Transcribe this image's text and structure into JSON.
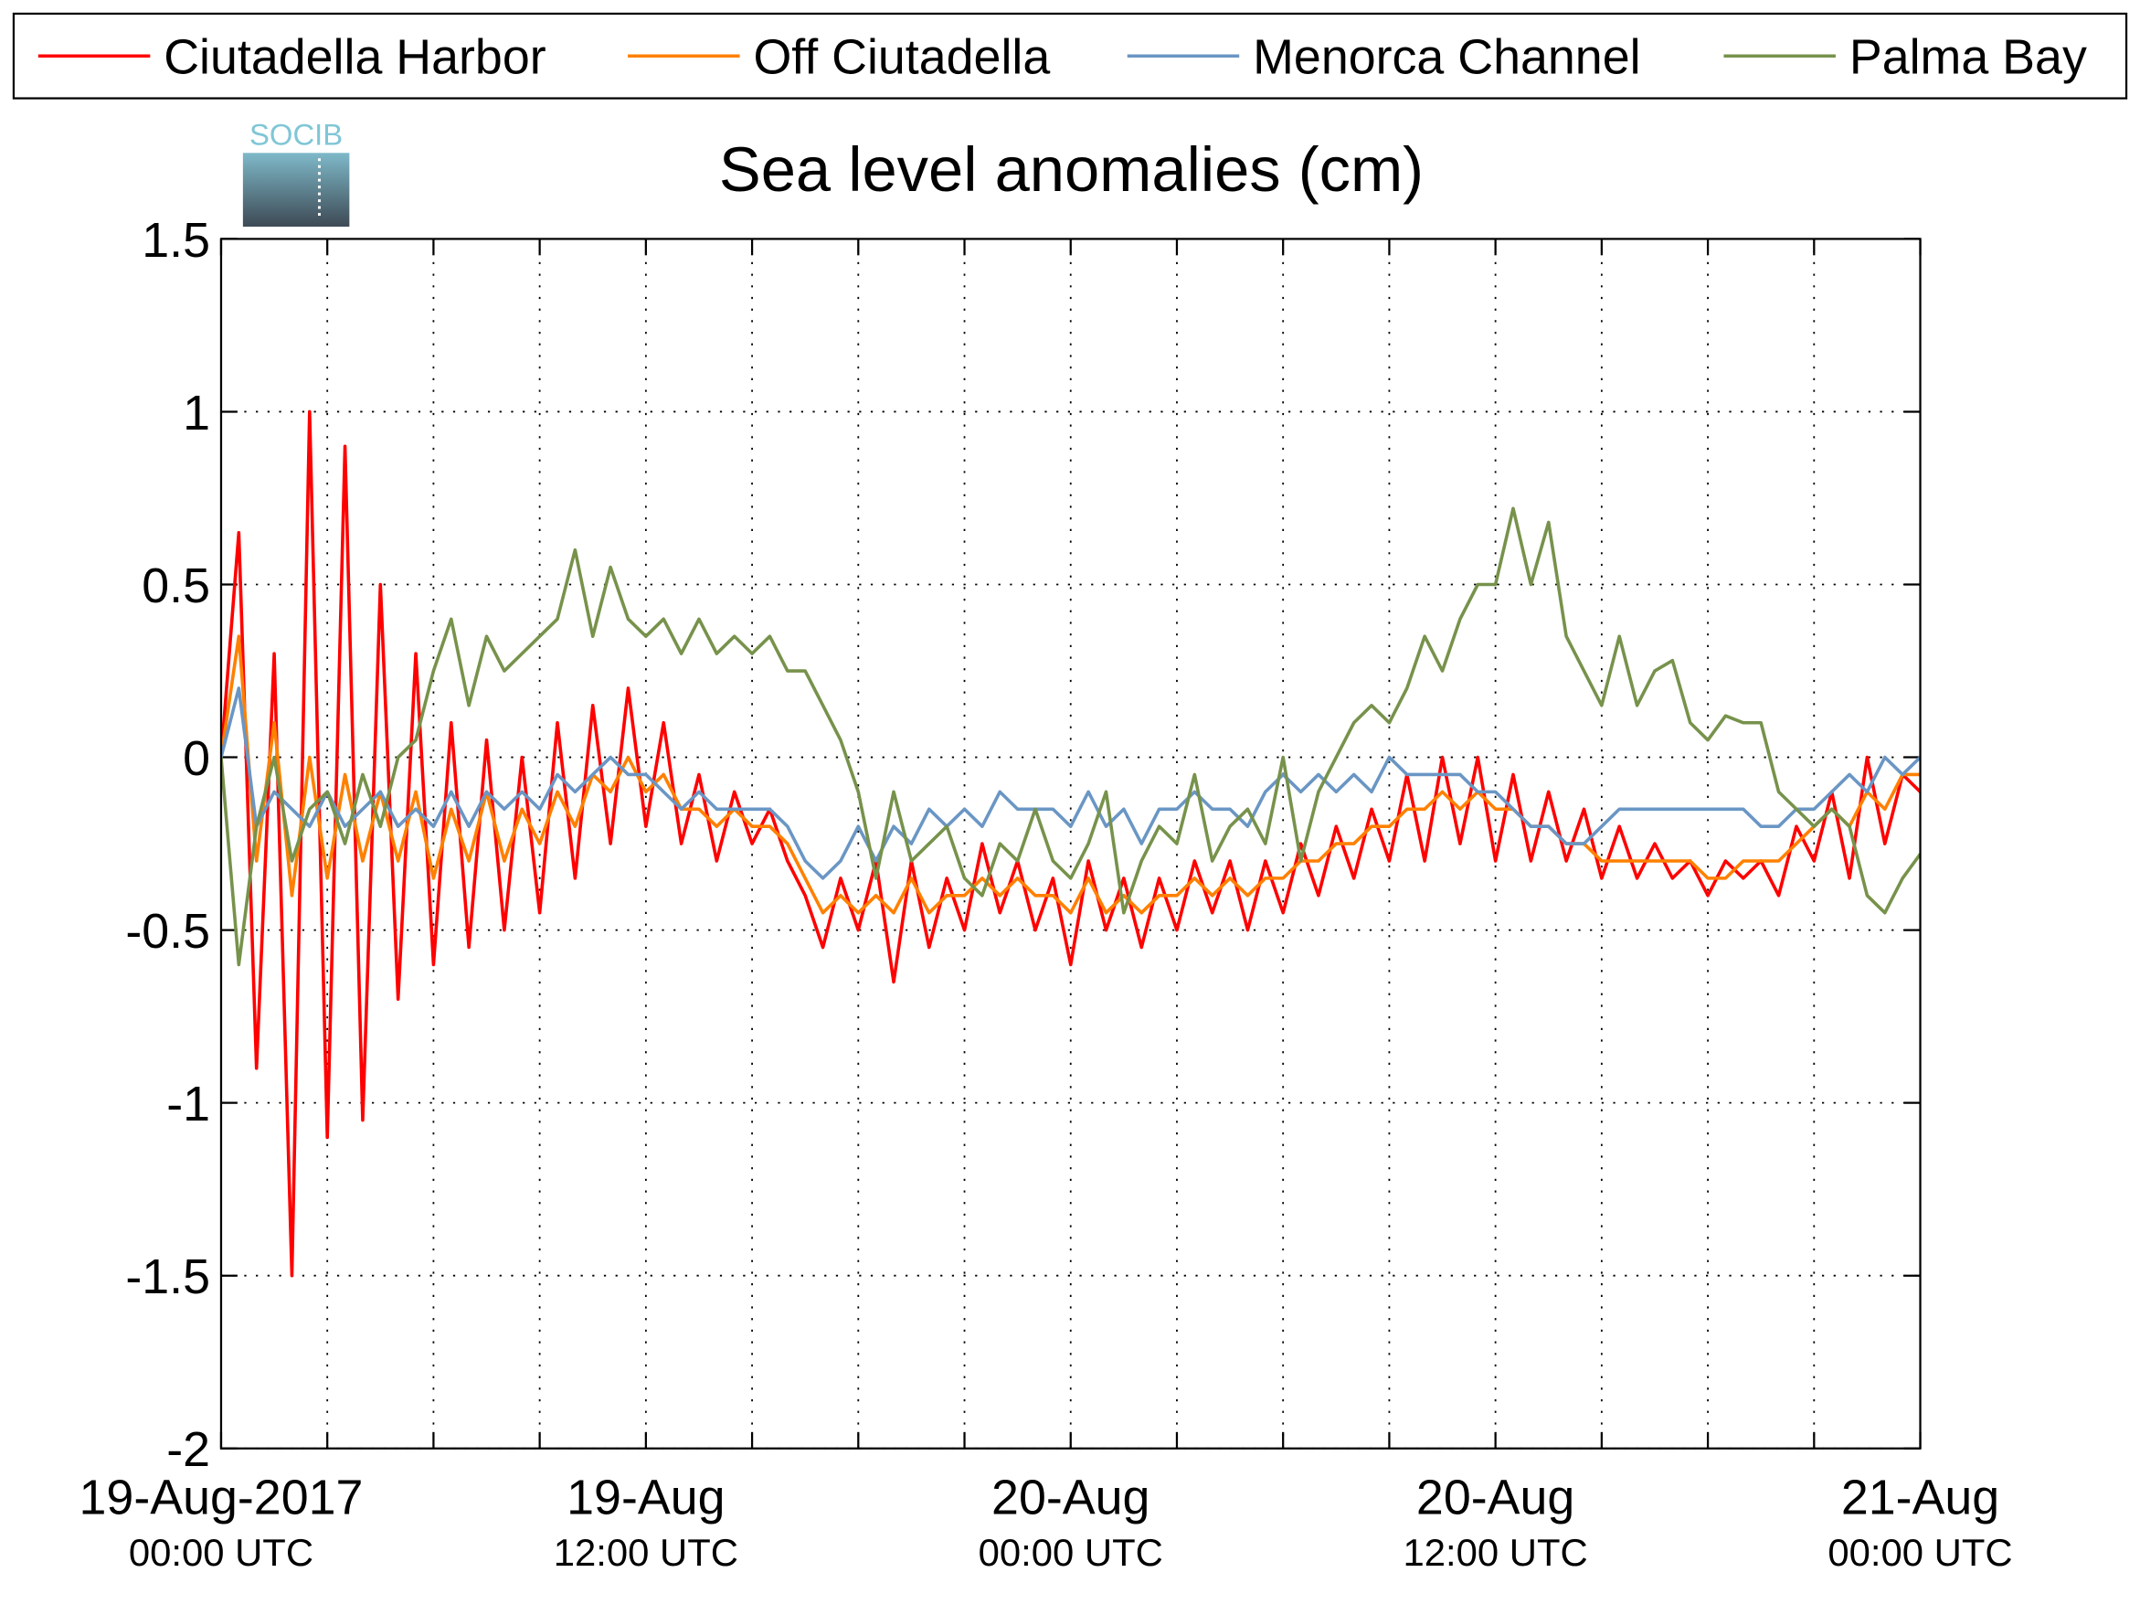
{
  "chart_data": {
    "type": "line",
    "title": "Sea level anomalies (cm)",
    "logo": "SOCIB",
    "legend": "top",
    "grid": true,
    "x": [
      0,
      0.5,
      1,
      1.5,
      2,
      2.5,
      3,
      3.5,
      4,
      4.5,
      5,
      5.5,
      6,
      6.5,
      7,
      7.5,
      8,
      8.5,
      9,
      9.5,
      10,
      10.5,
      11,
      11.5,
      12,
      12.5,
      13,
      13.5,
      14,
      14.5,
      15,
      15.5,
      16,
      16.5,
      17,
      17.5,
      18,
      18.5,
      19,
      19.5,
      20,
      20.5,
      21,
      21.5,
      22,
      22.5,
      23,
      23.5,
      24,
      24.5,
      25,
      25.5,
      26,
      26.5,
      27,
      27.5,
      28,
      28.5,
      29,
      29.5,
      30,
      30.5,
      31,
      31.5,
      32,
      32.5,
      33,
      33.5,
      34,
      34.5,
      35,
      35.5,
      36,
      36.5,
      37,
      37.5,
      38,
      38.5,
      39,
      39.5,
      40,
      40.5,
      41,
      41.5,
      42,
      42.5,
      43,
      43.5,
      44,
      44.5,
      45,
      45.5,
      46,
      46.5,
      47,
      47.5,
      48
    ],
    "xlim": [
      0,
      48
    ],
    "xticks": [
      {
        "value": 0,
        "label": [
          "19-Aug-2017",
          "00:00 UTC"
        ]
      },
      {
        "value": 3,
        "label": null
      },
      {
        "value": 6,
        "label": null
      },
      {
        "value": 9,
        "label": null
      },
      {
        "value": 12,
        "label": [
          "19-Aug",
          "12:00 UTC"
        ]
      },
      {
        "value": 15,
        "label": null
      },
      {
        "value": 18,
        "label": null
      },
      {
        "value": 21,
        "label": null
      },
      {
        "value": 24,
        "label": [
          "20-Aug",
          "00:00 UTC"
        ]
      },
      {
        "value": 27,
        "label": null
      },
      {
        "value": 30,
        "label": null
      },
      {
        "value": 33,
        "label": null
      },
      {
        "value": 36,
        "label": [
          "20-Aug",
          "12:00 UTC"
        ]
      },
      {
        "value": 39,
        "label": null
      },
      {
        "value": 42,
        "label": null
      },
      {
        "value": 45,
        "label": null
      },
      {
        "value": 48,
        "label": [
          "21-Aug",
          "00:00 UTC"
        ]
      }
    ],
    "ylim": [
      -2,
      1.5
    ],
    "yticks": [
      -2,
      -1.5,
      -1,
      -0.5,
      0,
      0.5,
      1,
      1.5
    ],
    "series": [
      {
        "name": "Ciutadella Harbor",
        "color": "#ff0000",
        "values": [
          0,
          0.65,
          -0.9,
          0.3,
          -1.5,
          1.0,
          -1.1,
          0.9,
          -1.05,
          0.5,
          -0.7,
          0.3,
          -0.6,
          0.1,
          -0.55,
          0.05,
          -0.5,
          0.0,
          -0.45,
          0.1,
          -0.35,
          0.15,
          -0.25,
          0.2,
          -0.2,
          0.1,
          -0.25,
          -0.05,
          -0.3,
          -0.1,
          -0.25,
          -0.15,
          -0.3,
          -0.4,
          -0.55,
          -0.35,
          -0.5,
          -0.3,
          -0.65,
          -0.3,
          -0.55,
          -0.35,
          -0.5,
          -0.25,
          -0.45,
          -0.3,
          -0.5,
          -0.35,
          -0.6,
          -0.3,
          -0.5,
          -0.35,
          -0.55,
          -0.35,
          -0.5,
          -0.3,
          -0.45,
          -0.3,
          -0.5,
          -0.3,
          -0.45,
          -0.25,
          -0.4,
          -0.2,
          -0.35,
          -0.15,
          -0.3,
          -0.05,
          -0.3,
          0.0,
          -0.25,
          0.0,
          -0.3,
          -0.05,
          -0.3,
          -0.1,
          -0.3,
          -0.15,
          -0.35,
          -0.2,
          -0.35,
          -0.25,
          -0.35,
          -0.3,
          -0.4,
          -0.3,
          -0.35,
          -0.3,
          -0.4,
          -0.2,
          -0.3,
          -0.1,
          -0.35,
          0.0,
          -0.25,
          -0.05,
          -0.1
        ]
      },
      {
        "name": "Off Ciutadella",
        "color": "#ff8000",
        "values": [
          0,
          0.35,
          -0.3,
          0.1,
          -0.4,
          0.0,
          -0.35,
          -0.05,
          -0.3,
          -0.1,
          -0.3,
          -0.1,
          -0.35,
          -0.15,
          -0.3,
          -0.1,
          -0.3,
          -0.15,
          -0.25,
          -0.1,
          -0.2,
          -0.05,
          -0.1,
          0.0,
          -0.1,
          -0.05,
          -0.15,
          -0.15,
          -0.2,
          -0.15,
          -0.2,
          -0.2,
          -0.25,
          -0.35,
          -0.45,
          -0.4,
          -0.45,
          -0.4,
          -0.45,
          -0.35,
          -0.45,
          -0.4,
          -0.4,
          -0.35,
          -0.4,
          -0.35,
          -0.4,
          -0.4,
          -0.45,
          -0.35,
          -0.45,
          -0.4,
          -0.45,
          -0.4,
          -0.4,
          -0.35,
          -0.4,
          -0.35,
          -0.4,
          -0.35,
          -0.35,
          -0.3,
          -0.3,
          -0.25,
          -0.25,
          -0.2,
          -0.2,
          -0.15,
          -0.15,
          -0.1,
          -0.15,
          -0.1,
          -0.15,
          -0.15,
          -0.2,
          -0.2,
          -0.25,
          -0.25,
          -0.3,
          -0.3,
          -0.3,
          -0.3,
          -0.3,
          -0.3,
          -0.35,
          -0.35,
          -0.3,
          -0.3,
          -0.3,
          -0.25,
          -0.2,
          -0.15,
          -0.2,
          -0.1,
          -0.15,
          -0.05,
          -0.05
        ]
      },
      {
        "name": "Menorca Channel",
        "color": "#6a96c4",
        "values": [
          0,
          0.2,
          -0.2,
          -0.1,
          -0.15,
          -0.2,
          -0.1,
          -0.2,
          -0.15,
          -0.1,
          -0.2,
          -0.15,
          -0.2,
          -0.1,
          -0.2,
          -0.1,
          -0.15,
          -0.1,
          -0.15,
          -0.05,
          -0.1,
          -0.05,
          0.0,
          -0.05,
          -0.05,
          -0.1,
          -0.15,
          -0.1,
          -0.15,
          -0.15,
          -0.15,
          -0.15,
          -0.2,
          -0.3,
          -0.35,
          -0.3,
          -0.2,
          -0.3,
          -0.2,
          -0.25,
          -0.15,
          -0.2,
          -0.15,
          -0.2,
          -0.1,
          -0.15,
          -0.15,
          -0.15,
          -0.2,
          -0.1,
          -0.2,
          -0.15,
          -0.25,
          -0.15,
          -0.15,
          -0.1,
          -0.15,
          -0.15,
          -0.2,
          -0.1,
          -0.05,
          -0.1,
          -0.05,
          -0.1,
          -0.05,
          -0.1,
          0.0,
          -0.05,
          -0.05,
          -0.05,
          -0.05,
          -0.1,
          -0.1,
          -0.15,
          -0.2,
          -0.2,
          -0.25,
          -0.25,
          -0.2,
          -0.15,
          -0.15,
          -0.15,
          -0.15,
          -0.15,
          -0.15,
          -0.15,
          -0.15,
          -0.2,
          -0.2,
          -0.15,
          -0.15,
          -0.1,
          -0.05,
          -0.1,
          0.0,
          -0.05,
          0.0
        ]
      },
      {
        "name": "Palma Bay",
        "color": "#77924b",
        "values": [
          0,
          -0.6,
          -0.2,
          0.0,
          -0.3,
          -0.15,
          -0.1,
          -0.25,
          -0.05,
          -0.2,
          0.0,
          0.05,
          0.25,
          0.4,
          0.15,
          0.35,
          0.25,
          0.3,
          0.35,
          0.4,
          0.6,
          0.35,
          0.55,
          0.4,
          0.35,
          0.4,
          0.3,
          0.4,
          0.3,
          0.35,
          0.3,
          0.35,
          0.25,
          0.25,
          0.15,
          0.05,
          -0.1,
          -0.35,
          -0.1,
          -0.3,
          -0.25,
          -0.2,
          -0.35,
          -0.4,
          -0.25,
          -0.3,
          -0.15,
          -0.3,
          -0.35,
          -0.25,
          -0.1,
          -0.45,
          -0.3,
          -0.2,
          -0.25,
          -0.05,
          -0.3,
          -0.2,
          -0.15,
          -0.25,
          0.0,
          -0.3,
          -0.1,
          0.0,
          0.1,
          0.15,
          0.1,
          0.2,
          0.35,
          0.25,
          0.4,
          0.5,
          0.5,
          0.72,
          0.5,
          0.68,
          0.35,
          0.25,
          0.15,
          0.35,
          0.15,
          0.25,
          0.28,
          0.1,
          0.05,
          0.12,
          0.1,
          0.1,
          -0.1,
          -0.15,
          -0.2,
          -0.15,
          -0.2,
          -0.4,
          -0.45,
          -0.35,
          -0.28
        ]
      }
    ]
  }
}
